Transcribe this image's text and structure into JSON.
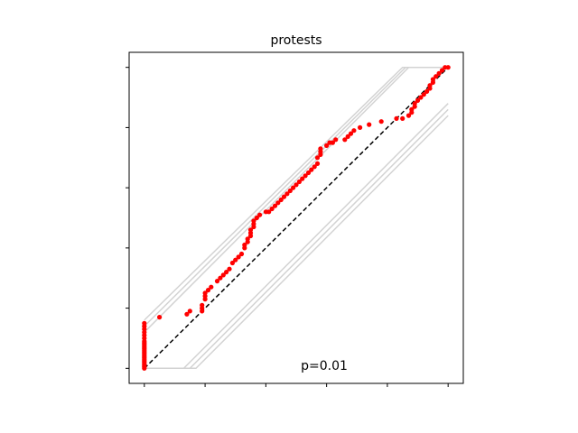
{
  "chart_data": {
    "type": "scatter",
    "title": "protests",
    "xlabel": "",
    "ylabel": "",
    "xlim": [
      -0.05,
      1.05
    ],
    "ylim": [
      -0.05,
      1.05
    ],
    "x_ticks": [
      0,
      0.2,
      0.4,
      0.6,
      0.8,
      1.0
    ],
    "y_ticks": [
      0,
      0.2,
      0.4,
      0.6,
      0.8,
      1.0
    ],
    "tick_labels_visible": false,
    "grid": false,
    "annotation": "p=0.01",
    "colors": {
      "points": "#ff0000",
      "reference_line": "#000000",
      "envelope": "#d3d3d3"
    },
    "reference_line": {
      "style": "dashed",
      "x": [
        0,
        1
      ],
      "y": [
        0,
        1
      ]
    },
    "envelope_bands": [
      {
        "x": [
          0,
          0.85,
          1.0
        ],
        "y": [
          0.16,
          1.0,
          1.0
        ]
      },
      {
        "x": [
          0,
          0.86,
          1.0
        ],
        "y": [
          0.14,
          1.0,
          1.0
        ]
      },
      {
        "x": [
          0,
          0.87,
          1.0
        ],
        "y": [
          0.12,
          1.0,
          1.0
        ]
      },
      {
        "x": [
          0,
          0.13,
          1.0
        ],
        "y": [
          0,
          0,
          0.88
        ]
      },
      {
        "x": [
          0,
          0.15,
          1.0
        ],
        "y": [
          0,
          0,
          0.86
        ]
      },
      {
        "x": [
          0,
          0.17,
          1.0
        ],
        "y": [
          0,
          0,
          0.84
        ]
      }
    ],
    "points": {
      "x": [
        0,
        0,
        0,
        0,
        0,
        0,
        0,
        0,
        0,
        0,
        0,
        0,
        0,
        0,
        0,
        0,
        0,
        0,
        0,
        0,
        0,
        0,
        0,
        0,
        0,
        0.05,
        0.14,
        0.15,
        0.19,
        0.19,
        0.19,
        0.2,
        0.2,
        0.2,
        0.21,
        0.22,
        0.24,
        0.25,
        0.26,
        0.27,
        0.28,
        0.29,
        0.3,
        0.31,
        0.32,
        0.33,
        0.33,
        0.34,
        0.34,
        0.35,
        0.35,
        0.35,
        0.36,
        0.36,
        0.36,
        0.37,
        0.38,
        0.4,
        0.41,
        0.42,
        0.43,
        0.44,
        0.45,
        0.46,
        0.47,
        0.48,
        0.49,
        0.5,
        0.51,
        0.52,
        0.53,
        0.54,
        0.55,
        0.56,
        0.57,
        0.57,
        0.58,
        0.58,
        0.58,
        0.6,
        0.61,
        0.62,
        0.63,
        0.66,
        0.67,
        0.68,
        0.69,
        0.71,
        0.74,
        0.78,
        0.83,
        0.85,
        0.87,
        0.88,
        0.88,
        0.89,
        0.89,
        0.9,
        0.91,
        0.92,
        0.93,
        0.94,
        0.94,
        0.95,
        0.95,
        0.96,
        0.97,
        0.98,
        0.99,
        1.0
      ],
      "y": [
        0,
        0.01,
        0.02,
        0.03,
        0.04,
        0.05,
        0.06,
        0.07,
        0.08,
        0.09,
        0.1,
        0.11,
        0.12,
        0.13,
        0.14,
        0.15,
        0.005,
        0.015,
        0.025,
        0.035,
        0.045,
        0.055,
        0.065,
        0.075,
        0.085,
        0.17,
        0.18,
        0.19,
        0.19,
        0.2,
        0.21,
        0.23,
        0.24,
        0.25,
        0.26,
        0.27,
        0.29,
        0.3,
        0.31,
        0.32,
        0.33,
        0.35,
        0.36,
        0.37,
        0.38,
        0.4,
        0.41,
        0.42,
        0.43,
        0.44,
        0.45,
        0.46,
        0.47,
        0.48,
        0.49,
        0.5,
        0.51,
        0.52,
        0.52,
        0.53,
        0.54,
        0.55,
        0.56,
        0.57,
        0.58,
        0.59,
        0.6,
        0.61,
        0.62,
        0.63,
        0.64,
        0.65,
        0.66,
        0.67,
        0.68,
        0.7,
        0.71,
        0.72,
        0.73,
        0.74,
        0.75,
        0.75,
        0.76,
        0.76,
        0.77,
        0.78,
        0.79,
        0.8,
        0.81,
        0.82,
        0.83,
        0.83,
        0.84,
        0.85,
        0.86,
        0.87,
        0.88,
        0.89,
        0.9,
        0.91,
        0.92,
        0.93,
        0.94,
        0.95,
        0.96,
        0.97,
        0.98,
        0.99,
        1.0,
        1.0
      ]
    }
  }
}
